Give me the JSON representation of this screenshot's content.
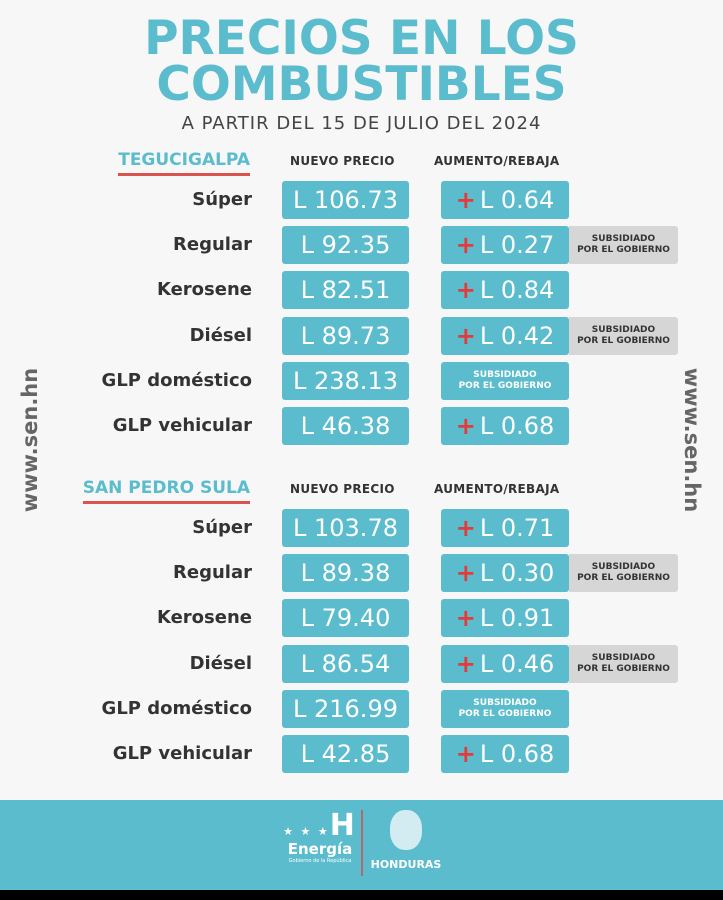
{
  "title_line1": "PRECIOS EN LOS",
  "title_line2": "COMBUSTIBLES",
  "subtitle": "A PARTIR DEL 15 DE JULIO DEL 2024",
  "side_text": "www.sen.hn",
  "col_price": "NUEVO PRECIO",
  "col_change": "AUMENTO/REBAJA",
  "subsidy_line1": "SUBSIDIADO",
  "subsidy_line2": "POR EL GOBIERNO",
  "colors": {
    "accent": "#5bbccd",
    "plus": "#e53a3a",
    "underline": "#d9534f",
    "subsidy_tag": "#d6d6d6"
  },
  "sections": [
    {
      "city": "TEGUCIGALPA",
      "rows": [
        {
          "fuel": "Súper",
          "price": "L 106.73",
          "change": "L 0.64",
          "subsidized": false
        },
        {
          "fuel": "Regular",
          "price": "L 92.35",
          "change": "L 0.27",
          "subsidized": true
        },
        {
          "fuel": "Kerosene",
          "price": "L 82.51",
          "change": "L 0.84",
          "subsidized": false
        },
        {
          "fuel": "Diésel",
          "price": "L 89.73",
          "change": "L 0.42",
          "subsidized": true
        },
        {
          "fuel": "GLP doméstico",
          "price": "L 238.13",
          "change": null,
          "subsidized": true
        },
        {
          "fuel": "GLP vehicular",
          "price": "L 46.38",
          "change": "L 0.68",
          "subsidized": false
        }
      ]
    },
    {
      "city": "SAN PEDRO SULA",
      "rows": [
        {
          "fuel": "Súper",
          "price": "L 103.78",
          "change": "L 0.71",
          "subsidized": false
        },
        {
          "fuel": "Regular",
          "price": "L 89.38",
          "change": "L 0.30",
          "subsidized": true
        },
        {
          "fuel": "Kerosene",
          "price": "L 79.40",
          "change": "L 0.91",
          "subsidized": false
        },
        {
          "fuel": "Diésel",
          "price": "L 86.54",
          "change": "L 0.46",
          "subsidized": true
        },
        {
          "fuel": "GLP doméstico",
          "price": "L 216.99",
          "change": null,
          "subsidized": true
        },
        {
          "fuel": "GLP vehicular",
          "price": "L 42.85",
          "change": "L 0.68",
          "subsidized": false
        }
      ]
    }
  ],
  "footer": {
    "logo1_name": "Energía",
    "logo1_sub": "Gobierno de la República",
    "logo2_name": "HONDURAS"
  }
}
